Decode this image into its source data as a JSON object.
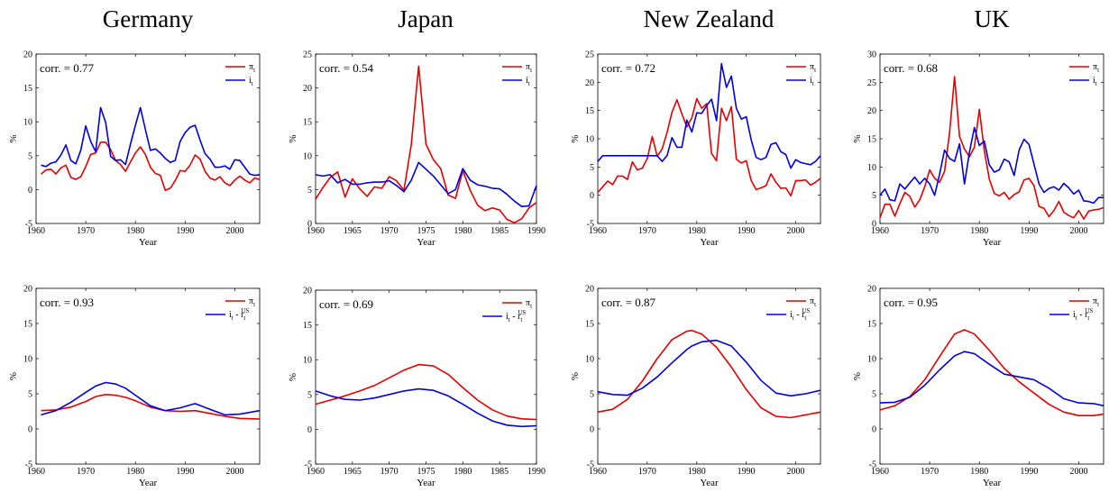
{
  "chart_data": [
    {
      "type": "line",
      "column_title": "Germany",
      "xlabel": "Year",
      "ylabel": "%",
      "xlim": [
        1960,
        2005
      ],
      "ylim": [
        -5,
        20
      ],
      "xticks": [
        1960,
        1970,
        1980,
        1990,
        2000
      ],
      "yticks": [
        -5,
        0,
        5,
        10,
        15,
        20
      ],
      "annotation": "corr. = 0.77",
      "x": [
        1961,
        1962,
        1963,
        1964,
        1965,
        1966,
        1967,
        1968,
        1969,
        1970,
        1971,
        1972,
        1973,
        1974,
        1975,
        1976,
        1977,
        1978,
        1979,
        1980,
        1981,
        1982,
        1983,
        1984,
        1985,
        1986,
        1987,
        1988,
        1989,
        1990,
        1991,
        1992,
        1993,
        1994,
        1995,
        1996,
        1997,
        1998,
        1999,
        2000,
        2001,
        2002,
        2003,
        2004,
        2005
      ],
      "series": [
        {
          "name": "π_t",
          "legend_main": "π",
          "legend_sub": "t",
          "color": "#e60000",
          "values": [
            2.3,
            2.9,
            3.0,
            2.3,
            3.2,
            3.6,
            1.8,
            1.5,
            1.9,
            3.4,
            5.2,
            5.4,
            7.0,
            7.0,
            5.9,
            4.3,
            3.7,
            2.7,
            4.1,
            5.4,
            6.3,
            5.2,
            3.3,
            2.4,
            2.1,
            -0.1,
            0.2,
            1.3,
            2.8,
            2.7,
            3.6,
            5.1,
            4.5,
            2.7,
            1.7,
            1.4,
            1.9,
            1.0,
            0.6,
            1.4,
            2.0,
            1.4,
            1.0,
            1.7,
            1.5
          ]
        },
        {
          "name": "i_t",
          "legend_main": "i",
          "legend_sub": "t",
          "color": "#0000dd",
          "values": [
            3.6,
            3.4,
            3.9,
            4.1,
            5.1,
            6.6,
            4.3,
            3.8,
            5.8,
            9.4,
            7.1,
            5.6,
            12.1,
            9.9,
            4.9,
            4.3,
            4.4,
            3.7,
            6.7,
            9.5,
            12.1,
            8.9,
            5.8,
            6.0,
            5.4,
            4.6,
            4.0,
            4.3,
            7.1,
            8.4,
            9.2,
            9.5,
            7.3,
            5.3,
            4.5,
            3.3,
            3.3,
            3.5,
            3.0,
            4.4,
            4.3,
            3.3,
            2.3,
            2.1,
            2.2
          ]
        }
      ]
    },
    {
      "type": "line",
      "column_title": "Japan",
      "xlabel": "Year",
      "ylabel": "%",
      "xlim": [
        1960,
        1990
      ],
      "ylim": [
        0,
        25
      ],
      "xticks": [
        1960,
        1965,
        1970,
        1975,
        1980,
        1985,
        1990
      ],
      "yticks": [
        0,
        5,
        10,
        15,
        20,
        25
      ],
      "annotation": "corr. = 0.54",
      "x": [
        1960,
        1961,
        1962,
        1963,
        1964,
        1965,
        1966,
        1967,
        1968,
        1969,
        1970,
        1971,
        1972,
        1973,
        1974,
        1975,
        1976,
        1977,
        1978,
        1979,
        1980,
        1981,
        1982,
        1983,
        1984,
        1985,
        1986,
        1987,
        1988,
        1989,
        1990
      ],
      "series": [
        {
          "name": "π_t",
          "legend_main": "π",
          "legend_sub": "t",
          "color": "#e60000",
          "values": [
            3.6,
            5.3,
            6.8,
            7.6,
            3.9,
            6.6,
            5.1,
            4.0,
            5.4,
            5.2,
            6.9,
            6.3,
            4.9,
            11.7,
            23.2,
            11.7,
            9.4,
            8.1,
            4.2,
            3.7,
            7.8,
            4.9,
            2.7,
            1.9,
            2.3,
            2.0,
            0.6,
            0.1,
            0.7,
            2.3,
            3.1
          ]
        },
        {
          "name": "i_t",
          "legend_main": "i",
          "legend_sub": "t",
          "color": "#0000dd",
          "values": [
            7.2,
            7.0,
            7.2,
            6.0,
            6.5,
            5.8,
            5.8,
            6.0,
            6.1,
            6.1,
            6.3,
            5.6,
            4.7,
            6.4,
            9.0,
            8.0,
            7.0,
            5.7,
            4.4,
            5.0,
            8.1,
            6.4,
            5.7,
            5.5,
            5.2,
            5.1,
            4.3,
            3.3,
            2.5,
            2.6,
            5.6
          ]
        }
      ]
    },
    {
      "type": "line",
      "column_title": "New Zealand",
      "xlabel": "Year",
      "ylabel": "%",
      "xlim": [
        1960,
        2005
      ],
      "ylim": [
        -5,
        25
      ],
      "xticks": [
        1960,
        1970,
        1980,
        1990,
        2000
      ],
      "yticks": [
        -5,
        0,
        5,
        10,
        15,
        20,
        25
      ],
      "annotation": "corr. = 0.72",
      "x": [
        1960,
        1961,
        1962,
        1963,
        1964,
        1965,
        1966,
        1967,
        1968,
        1969,
        1970,
        1971,
        1972,
        1973,
        1974,
        1975,
        1976,
        1977,
        1978,
        1979,
        1980,
        1981,
        1982,
        1983,
        1984,
        1985,
        1986,
        1987,
        1988,
        1989,
        1990,
        1991,
        1992,
        1993,
        1994,
        1995,
        1996,
        1997,
        1998,
        1999,
        2000,
        2001,
        2002,
        2003,
        2004,
        2005
      ],
      "series": [
        {
          "name": "π_t",
          "legend_main": "π",
          "legend_sub": "t",
          "color": "#e60000",
          "values": [
            0.5,
            1.5,
            2.5,
            1.9,
            3.4,
            3.4,
            2.8,
            5.9,
            4.5,
            4.8,
            6.5,
            10.4,
            6.9,
            8.2,
            11.1,
            14.7,
            16.9,
            14.4,
            12.1,
            13.7,
            17.1,
            15.4,
            16.2,
            7.4,
            6.1,
            15.4,
            13.2,
            15.7,
            6.4,
            5.7,
            6.1,
            2.6,
            1.0,
            1.3,
            1.7,
            3.8,
            2.3,
            1.2,
            1.3,
            -0.1,
            2.6,
            2.6,
            2.7,
            1.8,
            2.3,
            3.0
          ]
        },
        {
          "name": "i_t",
          "legend_main": "i",
          "legend_sub": "t",
          "color": "#0000dd",
          "values": [
            6.0,
            7.0,
            7.0,
            7.0,
            7.0,
            7.0,
            7.0,
            7.0,
            7.0,
            7.0,
            7.0,
            7.0,
            7.0,
            6.0,
            7.0,
            10.2,
            8.5,
            8.5,
            13.3,
            11.2,
            14.6,
            14.5,
            15.9,
            17.0,
            13.2,
            23.3,
            19.1,
            21.1,
            15.4,
            13.5,
            13.9,
            9.8,
            6.7,
            6.3,
            6.7,
            9.0,
            9.3,
            7.7,
            7.2,
            4.8,
            6.3,
            5.8,
            5.6,
            5.4,
            6.0,
            7.0
          ]
        }
      ]
    },
    {
      "type": "line",
      "column_title": "UK",
      "xlabel": "Year",
      "ylabel": "%",
      "xlim": [
        1960,
        2005
      ],
      "ylim": [
        0,
        30
      ],
      "xticks": [
        1960,
        1970,
        1980,
        1990,
        2000
      ],
      "yticks": [
        0,
        5,
        10,
        15,
        20,
        25,
        30
      ],
      "annotation": "corr. = 0.68",
      "x": [
        1960,
        1961,
        1962,
        1963,
        1964,
        1965,
        1966,
        1967,
        1968,
        1969,
        1970,
        1971,
        1972,
        1973,
        1974,
        1975,
        1976,
        1977,
        1978,
        1979,
        1980,
        1981,
        1982,
        1983,
        1984,
        1985,
        1986,
        1987,
        1988,
        1989,
        1990,
        1991,
        1992,
        1993,
        1994,
        1995,
        1996,
        1997,
        1998,
        1999,
        2000,
        2001,
        2002,
        2003,
        2004,
        2005
      ],
      "series": [
        {
          "name": "π_t",
          "legend_main": "π",
          "legend_sub": "t",
          "color": "#e60000",
          "values": [
            1.0,
            3.4,
            3.4,
            1.3,
            3.5,
            5.5,
            4.8,
            2.9,
            4.2,
            6.5,
            9.5,
            8.0,
            7.3,
            9.2,
            16.1,
            26.0,
            15.4,
            13.2,
            11.8,
            13.5,
            20.2,
            12.9,
            7.9,
            5.3,
            4.9,
            5.5,
            4.3,
            5.1,
            5.6,
            7.7,
            8.0,
            6.7,
            3.0,
            2.7,
            1.2,
            2.3,
            3.9,
            2.0,
            1.4,
            1.0,
            2.3,
            0.8,
            2.2,
            2.4,
            2.5,
            2.8
          ]
        },
        {
          "name": "i_t",
          "legend_main": "i",
          "legend_sub": "t",
          "color": "#0000dd",
          "values": [
            5.0,
            6.1,
            4.2,
            4.0,
            7.0,
            6.1,
            7.2,
            8.2,
            7.0,
            8.0,
            7.0,
            5.0,
            8.7,
            13.0,
            11.5,
            11.0,
            14.1,
            7.0,
            12.6,
            17.0,
            13.8,
            14.6,
            10.4,
            9.1,
            9.5,
            11.4,
            10.9,
            8.5,
            13.0,
            14.9,
            14.0,
            10.5,
            7.0,
            5.5,
            6.2,
            6.5,
            5.9,
            7.1,
            6.3,
            5.2,
            5.9,
            4.0,
            3.9,
            3.6,
            4.6,
            4.6
          ]
        }
      ]
    },
    {
      "type": "line",
      "xlabel": "Year",
      "ylabel": "%",
      "xlim": [
        1960,
        2005
      ],
      "ylim": [
        -5,
        20
      ],
      "xticks": [
        1960,
        1970,
        1980,
        1990,
        2000
      ],
      "yticks": [
        -5,
        0,
        5,
        10,
        15,
        20
      ],
      "annotation": "corr. = 0.93",
      "x": [
        1961,
        1964,
        1967,
        1970,
        1972,
        1974,
        1976,
        1978,
        1980,
        1983,
        1986,
        1989,
        1992,
        1995,
        1998,
        2001,
        2005
      ],
      "series": [
        {
          "name": "π_t",
          "legend_main": "π",
          "legend_sub": "t",
          "color": "#e60000",
          "values": [
            2.6,
            2.7,
            3.1,
            3.9,
            4.6,
            4.9,
            4.8,
            4.5,
            4.0,
            3.1,
            2.6,
            2.5,
            2.6,
            2.2,
            1.8,
            1.5,
            1.4
          ]
        },
        {
          "name": "i_t - r_t^US",
          "legend_main": "i",
          "legend_sub": "t",
          "legend_tail": " - r",
          "legend_tail_sub": "t",
          "legend_tail_sup": "US",
          "color": "#0000dd",
          "values": [
            2.0,
            2.6,
            3.8,
            5.2,
            6.1,
            6.6,
            6.4,
            5.8,
            4.8,
            3.3,
            2.6,
            3.0,
            3.6,
            2.8,
            2.0,
            2.1,
            2.6
          ]
        }
      ]
    },
    {
      "type": "line",
      "xlabel": "Year",
      "ylabel": "%",
      "xlim": [
        1960,
        1990
      ],
      "ylim": [
        -5,
        20
      ],
      "xticks": [
        1960,
        1965,
        1970,
        1975,
        1980,
        1985,
        1990
      ],
      "yticks": [
        -5,
        0,
        5,
        10,
        15,
        20
      ],
      "annotation": "corr. = 0.69",
      "x": [
        1960,
        1962,
        1964,
        1966,
        1968,
        1970,
        1972,
        1974,
        1976,
        1978,
        1980,
        1982,
        1984,
        1986,
        1988,
        1990
      ],
      "series": [
        {
          "name": "π_t",
          "legend_main": "π",
          "legend_sub": "t",
          "color": "#e60000",
          "values": [
            3.6,
            4.2,
            4.8,
            5.5,
            6.3,
            7.4,
            8.5,
            9.3,
            9.1,
            7.9,
            6.0,
            4.2,
            2.8,
            1.9,
            1.5,
            1.4
          ]
        },
        {
          "name": "i_t - r_t^US",
          "legend_main": "i",
          "legend_sub": "t",
          "legend_tail": " - r",
          "legend_tail_sub": "t",
          "legend_tail_sup": "US",
          "color": "#0000dd",
          "values": [
            5.5,
            4.8,
            4.3,
            4.2,
            4.5,
            5.0,
            5.5,
            5.8,
            5.6,
            4.8,
            3.6,
            2.3,
            1.2,
            0.6,
            0.4,
            0.5
          ]
        }
      ]
    },
    {
      "type": "line",
      "xlabel": "Year",
      "ylabel": "%",
      "xlim": [
        1960,
        2005
      ],
      "ylim": [
        -5,
        20
      ],
      "xticks": [
        1960,
        1970,
        1980,
        1990,
        2000
      ],
      "yticks": [
        -5,
        0,
        5,
        10,
        15,
        20
      ],
      "annotation": "corr. = 0.87",
      "x": [
        1960,
        1963,
        1966,
        1969,
        1972,
        1975,
        1978,
        1979,
        1981,
        1984,
        1987,
        1990,
        1993,
        1996,
        1999,
        2002,
        2005
      ],
      "series": [
        {
          "name": "π_t",
          "legend_main": "π",
          "legend_sub": "t",
          "color": "#e60000",
          "values": [
            2.4,
            2.8,
            4.2,
            6.8,
            10.0,
            12.7,
            13.9,
            14.0,
            13.5,
            11.6,
            8.8,
            5.6,
            3.0,
            1.8,
            1.6,
            2.0,
            2.4
          ]
        },
        {
          "name": "i_t - r_t^US",
          "legend_main": "i",
          "legend_sub": "t",
          "legend_tail": " - r",
          "legend_tail_sub": "t",
          "legend_tail_sup": "US",
          "color": "#0000dd",
          "values": [
            5.3,
            4.9,
            4.8,
            5.8,
            7.4,
            9.4,
            11.3,
            11.8,
            12.4,
            12.6,
            11.8,
            9.5,
            6.9,
            5.1,
            4.7,
            5.0,
            5.5
          ]
        }
      ]
    },
    {
      "type": "line",
      "xlabel": "Year",
      "ylabel": "%",
      "xlim": [
        1960,
        2005
      ],
      "ylim": [
        -5,
        20
      ],
      "xticks": [
        1960,
        1970,
        1980,
        1990,
        2000
      ],
      "yticks": [
        -5,
        0,
        5,
        10,
        15,
        20
      ],
      "annotation": "corr. = 0.95",
      "x": [
        1960,
        1963,
        1966,
        1969,
        1972,
        1975,
        1977,
        1979,
        1982,
        1985,
        1988,
        1991,
        1994,
        1997,
        2000,
        2003,
        2005
      ],
      "series": [
        {
          "name": "π_t",
          "legend_main": "π",
          "legend_sub": "t",
          "color": "#e60000",
          "values": [
            2.7,
            3.3,
            4.6,
            7.0,
            10.3,
            13.5,
            14.1,
            13.5,
            11.2,
            8.6,
            6.7,
            5.1,
            3.5,
            2.4,
            1.9,
            1.9,
            2.1
          ]
        },
        {
          "name": "i_t - r_t^US",
          "legend_main": "i",
          "legend_sub": "t",
          "legend_tail": " - r",
          "legend_tail_sub": "t",
          "legend_tail_sup": "US",
          "color": "#0000dd",
          "values": [
            3.7,
            3.8,
            4.5,
            6.2,
            8.4,
            10.4,
            11.0,
            10.7,
            9.2,
            7.8,
            7.4,
            7.0,
            5.8,
            4.3,
            3.7,
            3.6,
            3.3
          ]
        }
      ]
    }
  ]
}
